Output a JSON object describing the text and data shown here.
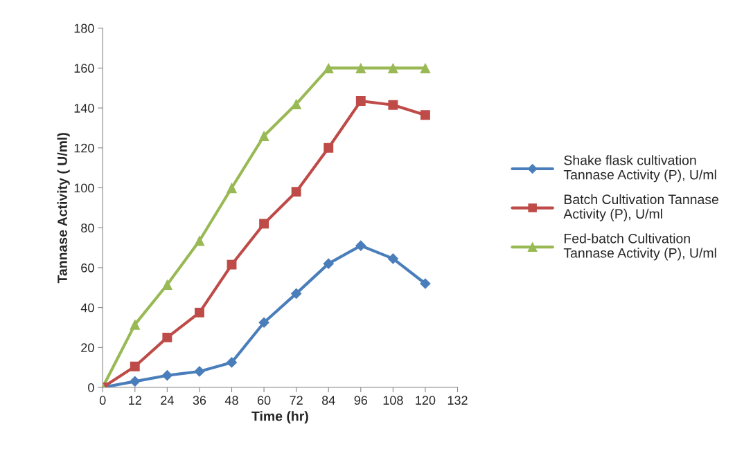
{
  "chart_data": {
    "type": "line",
    "xlabel": "Time (hr)",
    "ylabel": "Tannase Activity ( U/ml)",
    "x": [
      0,
      12,
      24,
      36,
      48,
      60,
      72,
      84,
      96,
      108,
      120
    ],
    "xlim": [
      0,
      132
    ],
    "xticks": [
      0,
      12,
      24,
      36,
      48,
      60,
      72,
      84,
      96,
      108,
      120,
      132
    ],
    "ylim": [
      0,
      180
    ],
    "yticks": [
      0,
      20,
      40,
      60,
      80,
      100,
      120,
      140,
      160,
      180
    ],
    "grid": false,
    "legend": "right",
    "series": [
      {
        "name": "Shake flask cultivation Tannase Activity (P), U/ml",
        "color": "#4a7ebb",
        "marker": "diamond",
        "values": [
          0,
          3,
          6,
          8,
          12.5,
          32.5,
          47,
          62,
          71,
          64.5,
          52
        ]
      },
      {
        "name": "Batch Cultivation Tannase Activity (P), U/ml",
        "color": "#be4b48",
        "marker": "square",
        "values": [
          0,
          10.5,
          25,
          37.5,
          61.5,
          82,
          98,
          120,
          143.5,
          141.5,
          136.5
        ]
      },
      {
        "name": "Fed-batch Cultivation Tannase Activity (P), U/ml",
        "color": "#98b954",
        "marker": "triangle",
        "values": [
          0,
          31.5,
          51.5,
          73.5,
          100,
          126,
          142,
          160,
          160,
          160,
          160
        ]
      }
    ]
  }
}
